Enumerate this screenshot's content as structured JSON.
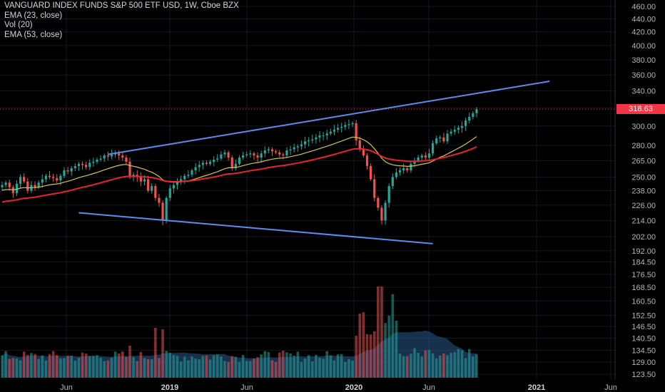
{
  "legend": {
    "title": "VANGUARD INDEX FUNDS S&P 500 ETF USD, 1W, Cboe BZX",
    "ema23": "EMA (23, close)",
    "vol": "Vol (20)",
    "ema53": "EMA (53, close)"
  },
  "last_price": "318.63",
  "colors": {
    "background": "#000000",
    "up": "#26a69a",
    "down": "#ef5350",
    "ema_fast": "#d4c64a",
    "ema_slow": "#e8232d",
    "trendline": "#5b8cf0",
    "volume_ma": "#2a5a8c",
    "price_tag": "#f23645"
  },
  "chart_data": {
    "type": "candlestick",
    "title": "VANGUARD INDEX FUNDS S&P 500 ETF USD, 1W, Cboe BZX",
    "y_axis_ticks": [
      "460.00",
      "440.00",
      "420.00",
      "400.00",
      "380.00",
      "360.00",
      "340.00",
      "320.00",
      "300.00",
      "280.00",
      "265.00",
      "250.00",
      "238.00",
      "226.00",
      "214.00",
      "202.00",
      "192.00",
      "184.50",
      "176.50",
      "168.50",
      "160.50",
      "152.50",
      "146.50",
      "140.50",
      "134.50",
      "129.00",
      "123.50"
    ],
    "x_axis_ticks": [
      {
        "label": "Jun",
        "bold": false
      },
      {
        "label": "2019",
        "bold": true
      },
      {
        "label": "Jun",
        "bold": false
      },
      {
        "label": "2020",
        "bold": true
      },
      {
        "label": "Jun",
        "bold": false
      },
      {
        "label": "2021",
        "bold": true
      },
      {
        "label": "Jun",
        "bold": false
      }
    ],
    "ylim": [
      122,
      465
    ],
    "y_scale": "log",
    "weekly_close": [
      243,
      245,
      241,
      236,
      244,
      250,
      246,
      238,
      243,
      241,
      245,
      248,
      251,
      250,
      249,
      247,
      251,
      256,
      255,
      258,
      260,
      262,
      261,
      259,
      263,
      264,
      266,
      267,
      270,
      269,
      271,
      272,
      270,
      268,
      264,
      250,
      252,
      250,
      246,
      248,
      238,
      242,
      232,
      228,
      214,
      232,
      240,
      243,
      246,
      248,
      251,
      252,
      256,
      259,
      261,
      263,
      262,
      264,
      266,
      267,
      271,
      273,
      268,
      258,
      262,
      268,
      270,
      271,
      272,
      270,
      268,
      272,
      275,
      276,
      274,
      273,
      271,
      270,
      275,
      276,
      278,
      279,
      281,
      284,
      285,
      286,
      288,
      290,
      290,
      292,
      294,
      296,
      298,
      299,
      301,
      302,
      303,
      285,
      276,
      270,
      260,
      248,
      232,
      224,
      214,
      228,
      242,
      250,
      254,
      256,
      258,
      256,
      262,
      265,
      268,
      270,
      268,
      272,
      282,
      287,
      288,
      284,
      292,
      294,
      296,
      298,
      300,
      306,
      310,
      314,
      318.63
    ],
    "ema_fast_end": 291,
    "ema_slow_end": 282,
    "volume_note": "weekly volume bars with Vol(20) moving-average area",
    "trendlines": [
      {
        "name": "upper",
        "from": {
          "week": 29,
          "price": 271
        },
        "to": {
          "week": 150,
          "price": 352
        }
      },
      {
        "name": "lower",
        "from": {
          "week": 21,
          "price": 220
        },
        "to": {
          "week": 118,
          "price": 197
        }
      }
    ]
  }
}
